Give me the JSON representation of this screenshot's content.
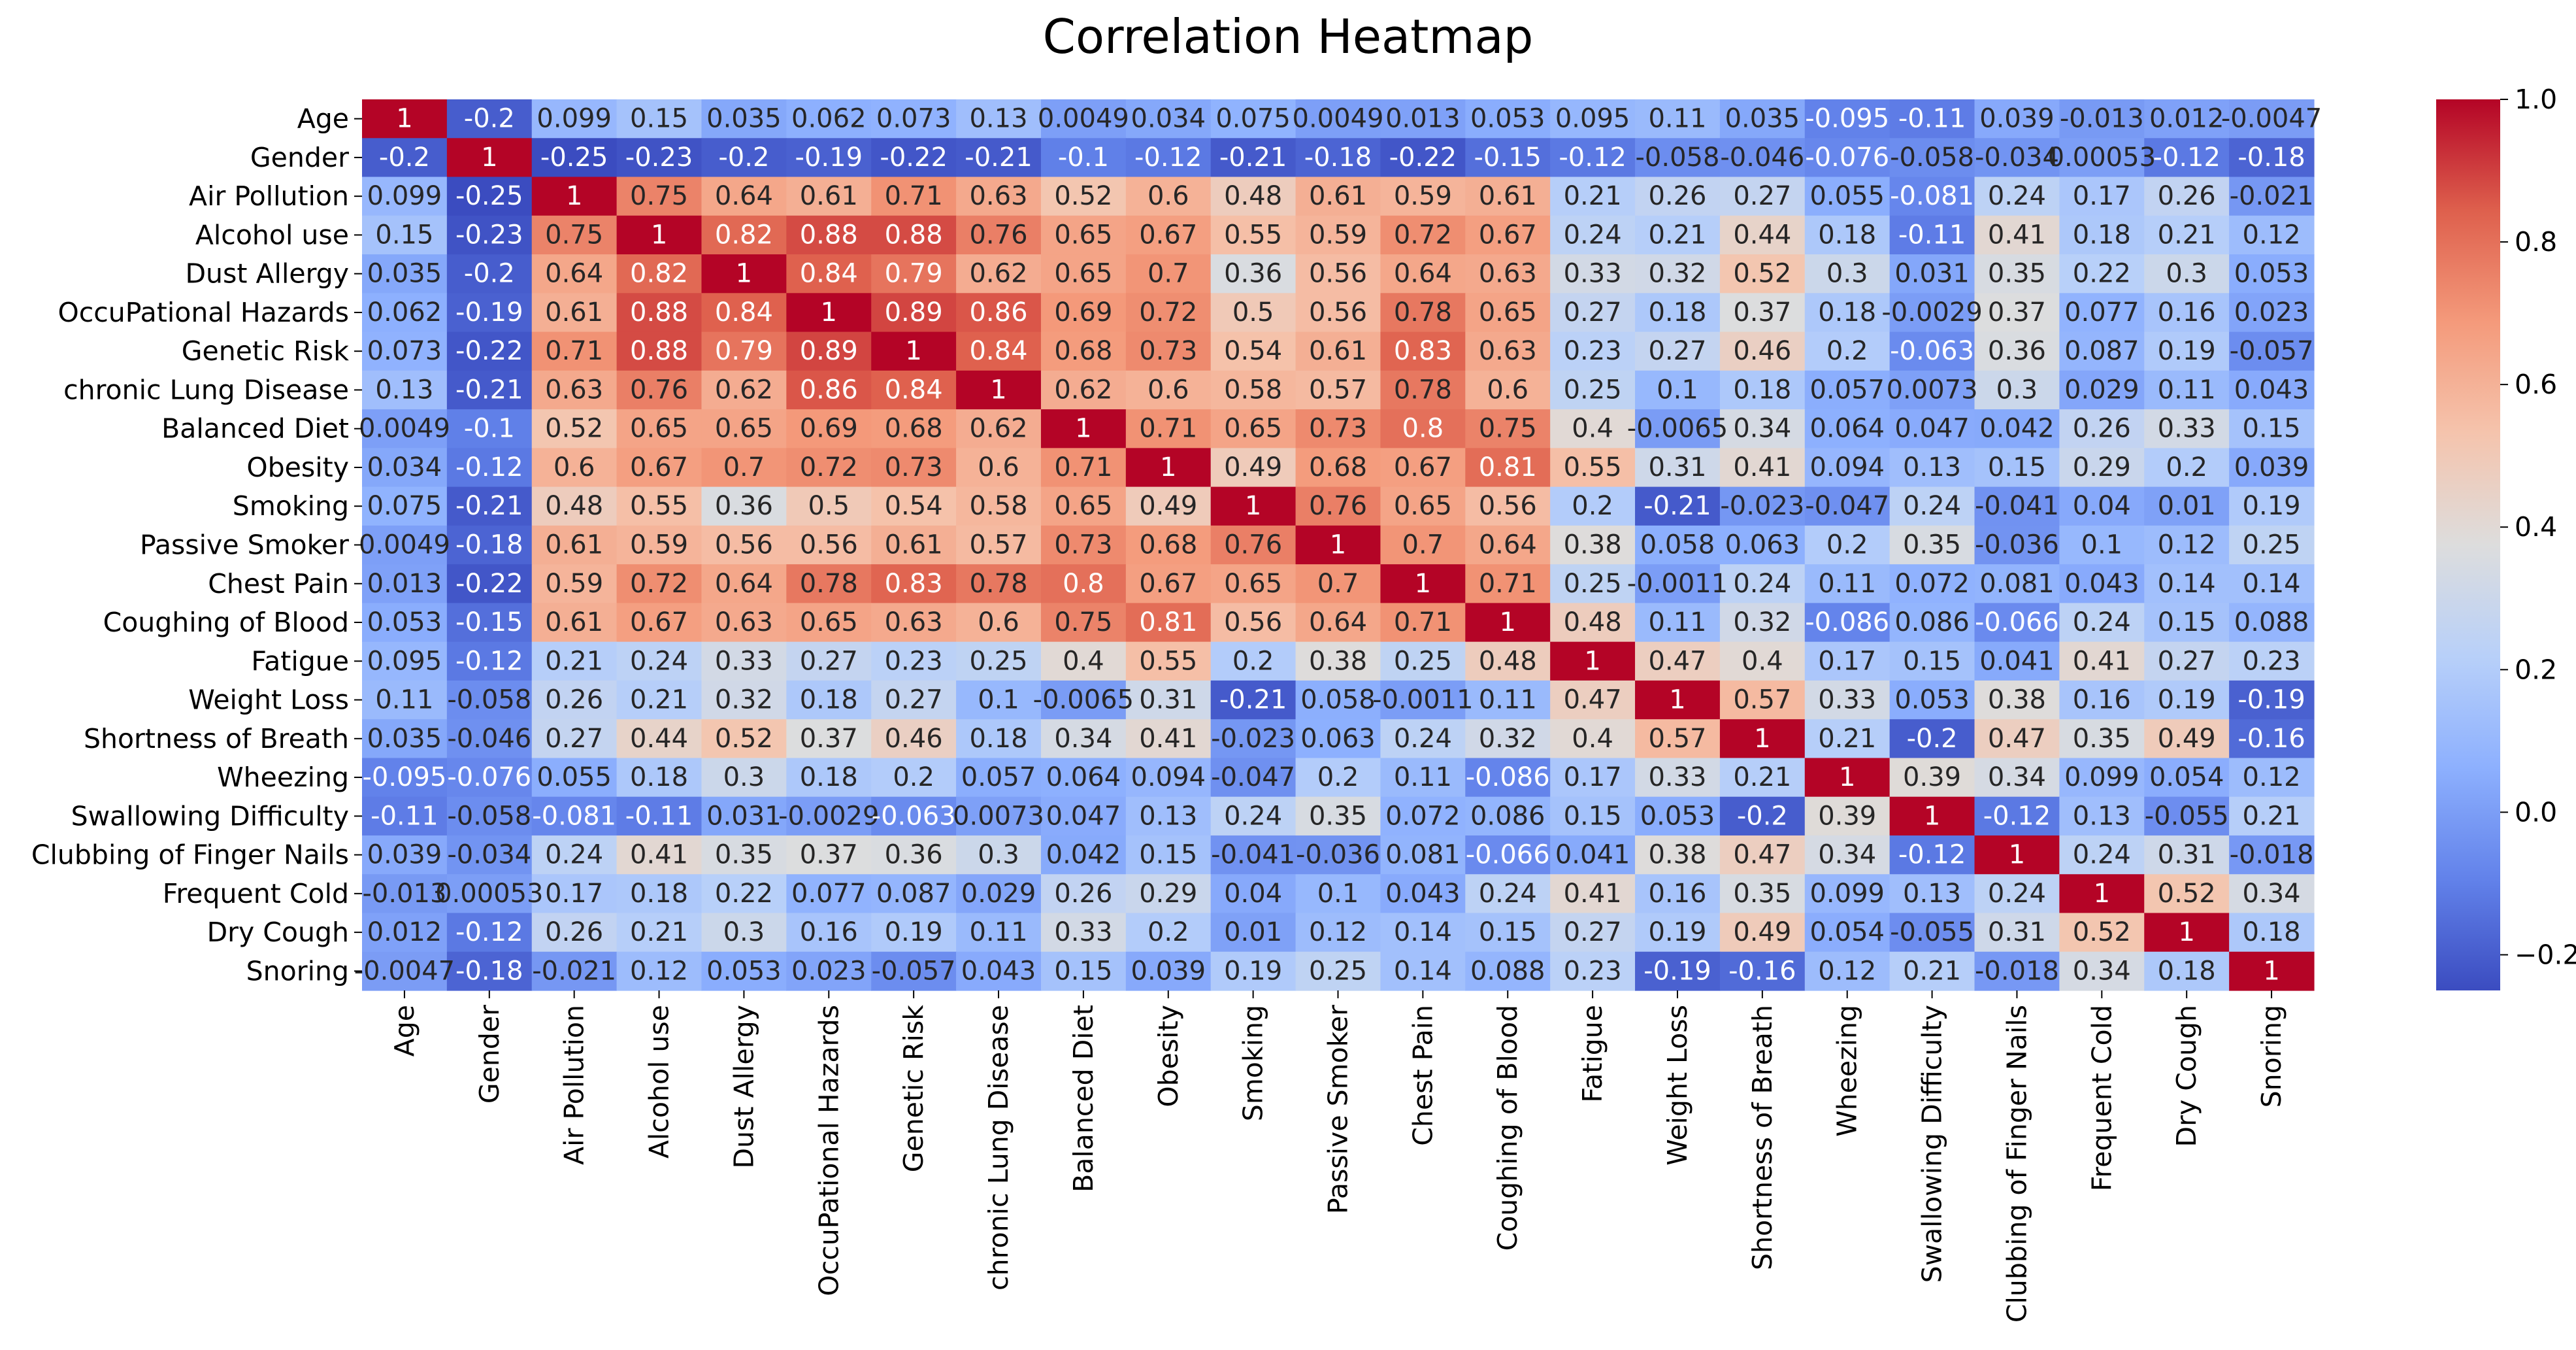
{
  "chart_data": {
    "type": "heatmap",
    "title": "Correlation Heatmap",
    "xlabel": "",
    "ylabel": "",
    "labels": [
      "Age",
      "Gender",
      "Air Pollution",
      "Alcohol use",
      "Dust Allergy",
      "OccuPational Hazards",
      "Genetic Risk",
      "chronic Lung Disease",
      "Balanced Diet",
      "Obesity",
      "Smoking",
      "Passive Smoker",
      "Chest Pain",
      "Coughing of Blood",
      "Fatigue",
      "Weight Loss",
      "Shortness of Breath",
      "Wheezing",
      "Swallowing Difficulty",
      "Clubbing of Finger Nails",
      "Frequent Cold",
      "Dry Cough",
      "Snoring"
    ],
    "cell_text": [
      [
        "1",
        "-0.2",
        "0.099",
        "0.15",
        "0.035",
        "0.062",
        "0.073",
        "0.13",
        "0.0049",
        "0.034",
        "0.075",
        "0.0049",
        "0.013",
        "0.053",
        "0.095",
        "0.11",
        "0.035",
        "-0.095",
        "-0.11",
        "0.039",
        "-0.013",
        "0.012",
        "-0.0047"
      ],
      [
        "-0.2",
        "1",
        "-0.25",
        "-0.23",
        "-0.2",
        "-0.19",
        "-0.22",
        "-0.21",
        "-0.1",
        "-0.12",
        "-0.21",
        "-0.18",
        "-0.22",
        "-0.15",
        "-0.12",
        "-0.058",
        "-0.046",
        "-0.076",
        "-0.058",
        "-0.034",
        "0.00053",
        "-0.12",
        "-0.18"
      ],
      [
        "0.099",
        "-0.25",
        "1",
        "0.75",
        "0.64",
        "0.61",
        "0.71",
        "0.63",
        "0.52",
        "0.6",
        "0.48",
        "0.61",
        "0.59",
        "0.61",
        "0.21",
        "0.26",
        "0.27",
        "0.055",
        "-0.081",
        "0.24",
        "0.17",
        "0.26",
        "-0.021"
      ],
      [
        "0.15",
        "-0.23",
        "0.75",
        "1",
        "0.82",
        "0.88",
        "0.88",
        "0.76",
        "0.65",
        "0.67",
        "0.55",
        "0.59",
        "0.72",
        "0.67",
        "0.24",
        "0.21",
        "0.44",
        "0.18",
        "-0.11",
        "0.41",
        "0.18",
        "0.21",
        "0.12"
      ],
      [
        "0.035",
        "-0.2",
        "0.64",
        "0.82",
        "1",
        "0.84",
        "0.79",
        "0.62",
        "0.65",
        "0.7",
        "0.36",
        "0.56",
        "0.64",
        "0.63",
        "0.33",
        "0.32",
        "0.52",
        "0.3",
        "0.031",
        "0.35",
        "0.22",
        "0.3",
        "0.053"
      ],
      [
        "0.062",
        "-0.19",
        "0.61",
        "0.88",
        "0.84",
        "1",
        "0.89",
        "0.86",
        "0.69",
        "0.72",
        "0.5",
        "0.56",
        "0.78",
        "0.65",
        "0.27",
        "0.18",
        "0.37",
        "0.18",
        "-0.0029",
        "0.37",
        "0.077",
        "0.16",
        "0.023"
      ],
      [
        "0.073",
        "-0.22",
        "0.71",
        "0.88",
        "0.79",
        "0.89",
        "1",
        "0.84",
        "0.68",
        "0.73",
        "0.54",
        "0.61",
        "0.83",
        "0.63",
        "0.23",
        "0.27",
        "0.46",
        "0.2",
        "-0.063",
        "0.36",
        "0.087",
        "0.19",
        "-0.057"
      ],
      [
        "0.13",
        "-0.21",
        "0.63",
        "0.76",
        "0.62",
        "0.86",
        "0.84",
        "1",
        "0.62",
        "0.6",
        "0.58",
        "0.57",
        "0.78",
        "0.6",
        "0.25",
        "0.1",
        "0.18",
        "0.057",
        "0.0073",
        "0.3",
        "0.029",
        "0.11",
        "0.043"
      ],
      [
        "0.0049",
        "-0.1",
        "0.52",
        "0.65",
        "0.65",
        "0.69",
        "0.68",
        "0.62",
        "1",
        "0.71",
        "0.65",
        "0.73",
        "0.8",
        "0.75",
        "0.4",
        "-0.0065",
        "0.34",
        "0.064",
        "0.047",
        "0.042",
        "0.26",
        "0.33",
        "0.15"
      ],
      [
        "0.034",
        "-0.12",
        "0.6",
        "0.67",
        "0.7",
        "0.72",
        "0.73",
        "0.6",
        "0.71",
        "1",
        "0.49",
        "0.68",
        "0.67",
        "0.81",
        "0.55",
        "0.31",
        "0.41",
        "0.094",
        "0.13",
        "0.15",
        "0.29",
        "0.2",
        "0.039"
      ],
      [
        "0.075",
        "-0.21",
        "0.48",
        "0.55",
        "0.36",
        "0.5",
        "0.54",
        "0.58",
        "0.65",
        "0.49",
        "1",
        "0.76",
        "0.65",
        "0.56",
        "0.2",
        "-0.21",
        "-0.023",
        "-0.047",
        "0.24",
        "-0.041",
        "0.04",
        "0.01",
        "0.19"
      ],
      [
        "0.0049",
        "-0.18",
        "0.61",
        "0.59",
        "0.56",
        "0.56",
        "0.61",
        "0.57",
        "0.73",
        "0.68",
        "0.76",
        "1",
        "0.7",
        "0.64",
        "0.38",
        "0.058",
        "0.063",
        "0.2",
        "0.35",
        "-0.036",
        "0.1",
        "0.12",
        "0.25"
      ],
      [
        "0.013",
        "-0.22",
        "0.59",
        "0.72",
        "0.64",
        "0.78",
        "0.83",
        "0.78",
        "0.8",
        "0.67",
        "0.65",
        "0.7",
        "1",
        "0.71",
        "0.25",
        "-0.0011",
        "0.24",
        "0.11",
        "0.072",
        "0.081",
        "0.043",
        "0.14",
        "0.14"
      ],
      [
        "0.053",
        "-0.15",
        "0.61",
        "0.67",
        "0.63",
        "0.65",
        "0.63",
        "0.6",
        "0.75",
        "0.81",
        "0.56",
        "0.64",
        "0.71",
        "1",
        "0.48",
        "0.11",
        "0.32",
        "-0.086",
        "0.086",
        "-0.066",
        "0.24",
        "0.15",
        "0.088"
      ],
      [
        "0.095",
        "-0.12",
        "0.21",
        "0.24",
        "0.33",
        "0.27",
        "0.23",
        "0.25",
        "0.4",
        "0.55",
        "0.2",
        "0.38",
        "0.25",
        "0.48",
        "1",
        "0.47",
        "0.4",
        "0.17",
        "0.15",
        "0.041",
        "0.41",
        "0.27",
        "0.23"
      ],
      [
        "0.11",
        "-0.058",
        "0.26",
        "0.21",
        "0.32",
        "0.18",
        "0.27",
        "0.1",
        "-0.0065",
        "0.31",
        "-0.21",
        "0.058",
        "-0.0011",
        "0.11",
        "0.47",
        "1",
        "0.57",
        "0.33",
        "0.053",
        "0.38",
        "0.16",
        "0.19",
        "-0.19"
      ],
      [
        "0.035",
        "-0.046",
        "0.27",
        "0.44",
        "0.52",
        "0.37",
        "0.46",
        "0.18",
        "0.34",
        "0.41",
        "-0.023",
        "0.063",
        "0.24",
        "0.32",
        "0.4",
        "0.57",
        "1",
        "0.21",
        "-0.2",
        "0.47",
        "0.35",
        "0.49",
        "-0.16"
      ],
      [
        "-0.095",
        "-0.076",
        "0.055",
        "0.18",
        "0.3",
        "0.18",
        "0.2",
        "0.057",
        "0.064",
        "0.094",
        "-0.047",
        "0.2",
        "0.11",
        "-0.086",
        "0.17",
        "0.33",
        "0.21",
        "1",
        "0.39",
        "0.34",
        "0.099",
        "0.054",
        "0.12"
      ],
      [
        "-0.11",
        "-0.058",
        "-0.081",
        "-0.11",
        "0.031",
        "-0.0029",
        "-0.063",
        "0.0073",
        "0.047",
        "0.13",
        "0.24",
        "0.35",
        "0.072",
        "0.086",
        "0.15",
        "0.053",
        "-0.2",
        "0.39",
        "1",
        "-0.12",
        "0.13",
        "-0.055",
        "0.21"
      ],
      [
        "0.039",
        "-0.034",
        "0.24",
        "0.41",
        "0.35",
        "0.37",
        "0.36",
        "0.3",
        "0.042",
        "0.15",
        "-0.041",
        "-0.036",
        "0.081",
        "-0.066",
        "0.041",
        "0.38",
        "0.47",
        "0.34",
        "-0.12",
        "1",
        "0.24",
        "0.31",
        "-0.018"
      ],
      [
        "-0.013",
        "0.00053",
        "0.17",
        "0.18",
        "0.22",
        "0.077",
        "0.087",
        "0.029",
        "0.26",
        "0.29",
        "0.04",
        "0.1",
        "0.043",
        "0.24",
        "0.41",
        "0.16",
        "0.35",
        "0.099",
        "0.13",
        "0.24",
        "1",
        "0.52",
        "0.34"
      ],
      [
        "0.012",
        "-0.12",
        "0.26",
        "0.21",
        "0.3",
        "0.16",
        "0.19",
        "0.11",
        "0.33",
        "0.2",
        "0.01",
        "0.12",
        "0.14",
        "0.15",
        "0.27",
        "0.19",
        "0.49",
        "0.054",
        "-0.055",
        "0.31",
        "0.52",
        "1",
        "0.18"
      ],
      [
        "-0.0047",
        "-0.18",
        "-0.021",
        "0.12",
        "0.053",
        "0.023",
        "-0.057",
        "0.043",
        "0.15",
        "0.039",
        "0.19",
        "0.25",
        "0.14",
        "0.088",
        "0.23",
        "-0.19",
        "-0.16",
        "0.12",
        "0.21",
        "-0.018",
        "0.34",
        "0.18",
        "1"
      ]
    ],
    "vmin": -0.25,
    "vmax": 1.0,
    "colormap": "coolwarm",
    "colorbar": {
      "ticks": [
        "−0.2",
        "0.0",
        "0.2",
        "0.4",
        "0.6",
        "0.8",
        "1.0"
      ],
      "tick_values": [
        -0.2,
        0.0,
        0.2,
        0.4,
        0.6,
        0.8,
        1.0
      ]
    },
    "colors": {
      "low": "#3b4cc0",
      "mid": "#dddddd",
      "high": "#b40426",
      "dark_text": "#262626",
      "light_text": "#ffffff"
    }
  }
}
